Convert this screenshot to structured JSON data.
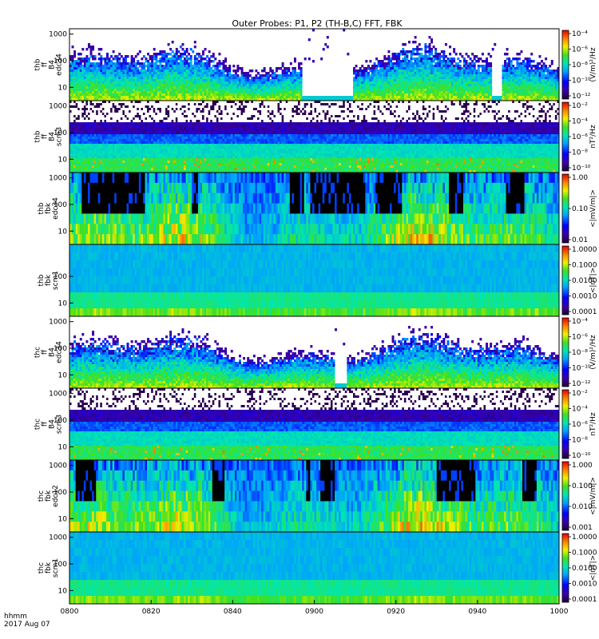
{
  "title": "Outer Probes: P1, P2 (TH-B,C) FFT, FBK",
  "time_label_1": "hhmm",
  "time_label_2": "2017 Aug 07",
  "chart_data": {
    "type": "heatmap",
    "x_ticks": [
      "0800",
      "0820",
      "0840",
      "0900",
      "0920",
      "0940",
      "1000"
    ],
    "panels": [
      {
        "id": "thb-ff-b4-edc34",
        "ylabel": [
          "thb",
          "ff",
          "B4",
          "edc34"
        ],
        "y_ticks": [
          "1000",
          "100",
          "10"
        ],
        "y_scale": "log",
        "cbar_label": "(V/m)²/Hz",
        "cbar_ticks": [
          "10⁻⁴",
          "10⁻⁶",
          "10⁻⁸",
          "10⁻¹⁰",
          "10⁻¹²"
        ],
        "style": "sparse",
        "gap_hours": [
          [
            0.95,
            1.15
          ],
          [
            1.72,
            1.76
          ]
        ]
      },
      {
        "id": "thb-ff-b4-scm3",
        "ylabel": [
          "thb",
          "ff",
          "B4",
          "scm3"
        ],
        "y_ticks": [
          "1000",
          "100",
          "10"
        ],
        "y_scale": "log",
        "cbar_label": "nT²/Hz",
        "cbar_ticks": [
          "10⁻²",
          "10⁻⁴",
          "10⁻⁶",
          "10⁻⁸",
          "10⁻¹⁰"
        ],
        "style": "scm",
        "gap_hours": []
      },
      {
        "id": "thb-fbk-edc34",
        "ylabel": [
          "thb",
          "fbk",
          "edc34"
        ],
        "y_ticks": [
          "1000",
          "100",
          "10"
        ],
        "y_scale": "log",
        "cbar_label": "<|mV/m|>",
        "cbar_ticks": [
          "1.00",
          "0.10",
          "0.01"
        ],
        "style": "fbk",
        "dark_hours": [
          [
            0.05,
            0.3
          ],
          [
            0.5,
            0.52
          ],
          [
            0.9,
            0.95
          ],
          [
            0.98,
            1.2
          ],
          [
            1.25,
            1.35
          ],
          [
            1.55,
            1.6
          ],
          [
            1.78,
            1.85
          ]
        ],
        "gap_hours": []
      },
      {
        "id": "thb-fbk-scm1",
        "ylabel": [
          "thb",
          "fbk",
          "scm1"
        ],
        "y_ticks": [
          "100",
          "10"
        ],
        "y_scale": "log",
        "cbar_label": "<|nT|>",
        "cbar_ticks": [
          "1.0000",
          "0.1000",
          "0.0100",
          "0.0010",
          "0.0001"
        ],
        "style": "fbkscm",
        "gap_hours": []
      },
      {
        "id": "thc-ff-b4-edc34",
        "ylabel": [
          "thc",
          "ff",
          "B4",
          "edc34"
        ],
        "y_ticks": [
          "1000",
          "100",
          "10"
        ],
        "y_scale": "log",
        "cbar_label": "(V/m)²/Hz",
        "cbar_ticks": [
          "10⁻⁴",
          "10⁻⁶",
          "10⁻⁸",
          "10⁻¹⁰",
          "10⁻¹²"
        ],
        "style": "sparse",
        "gap_hours": [
          [
            1.08,
            1.13
          ]
        ]
      },
      {
        "id": "thc-ff-b4-scm3",
        "ylabel": [
          "thc",
          "ff",
          "B4",
          "scm3"
        ],
        "y_ticks": [
          "1000",
          "100",
          "10"
        ],
        "y_scale": "log",
        "cbar_label": "nT²/Hz",
        "cbar_ticks": [
          "10⁻²",
          "10⁻⁴",
          "10⁻⁶",
          "10⁻⁸",
          "10⁻¹⁰"
        ],
        "style": "scm",
        "gap_hours": []
      },
      {
        "id": "thc-fbk-edc12",
        "ylabel": [
          "thc",
          "fbk",
          "edc12"
        ],
        "y_ticks": [
          "1000",
          "100",
          "10"
        ],
        "y_scale": "log",
        "cbar_label": "<|mV/m|>",
        "cbar_ticks": [
          "1.000",
          "0.100",
          "0.010",
          "0.001"
        ],
        "style": "fbk",
        "dark_hours": [
          [
            0.02,
            0.1
          ],
          [
            0.58,
            0.63
          ],
          [
            0.96,
            0.98
          ],
          [
            1.02,
            1.08
          ],
          [
            1.5,
            1.65
          ],
          [
            1.85,
            1.9
          ]
        ],
        "gap_hours": []
      },
      {
        "id": "thc-fbk-scm1",
        "ylabel": [
          "thc",
          "fbk",
          "scm1"
        ],
        "y_ticks": [
          "1000",
          "100",
          "10"
        ],
        "y_scale": "log",
        "cbar_label": "<|nT|>",
        "cbar_ticks": [
          "1.0000",
          "0.1000",
          "0.0100",
          "0.0010",
          "0.0001"
        ],
        "style": "fbkscm",
        "gap_hours": []
      }
    ]
  }
}
